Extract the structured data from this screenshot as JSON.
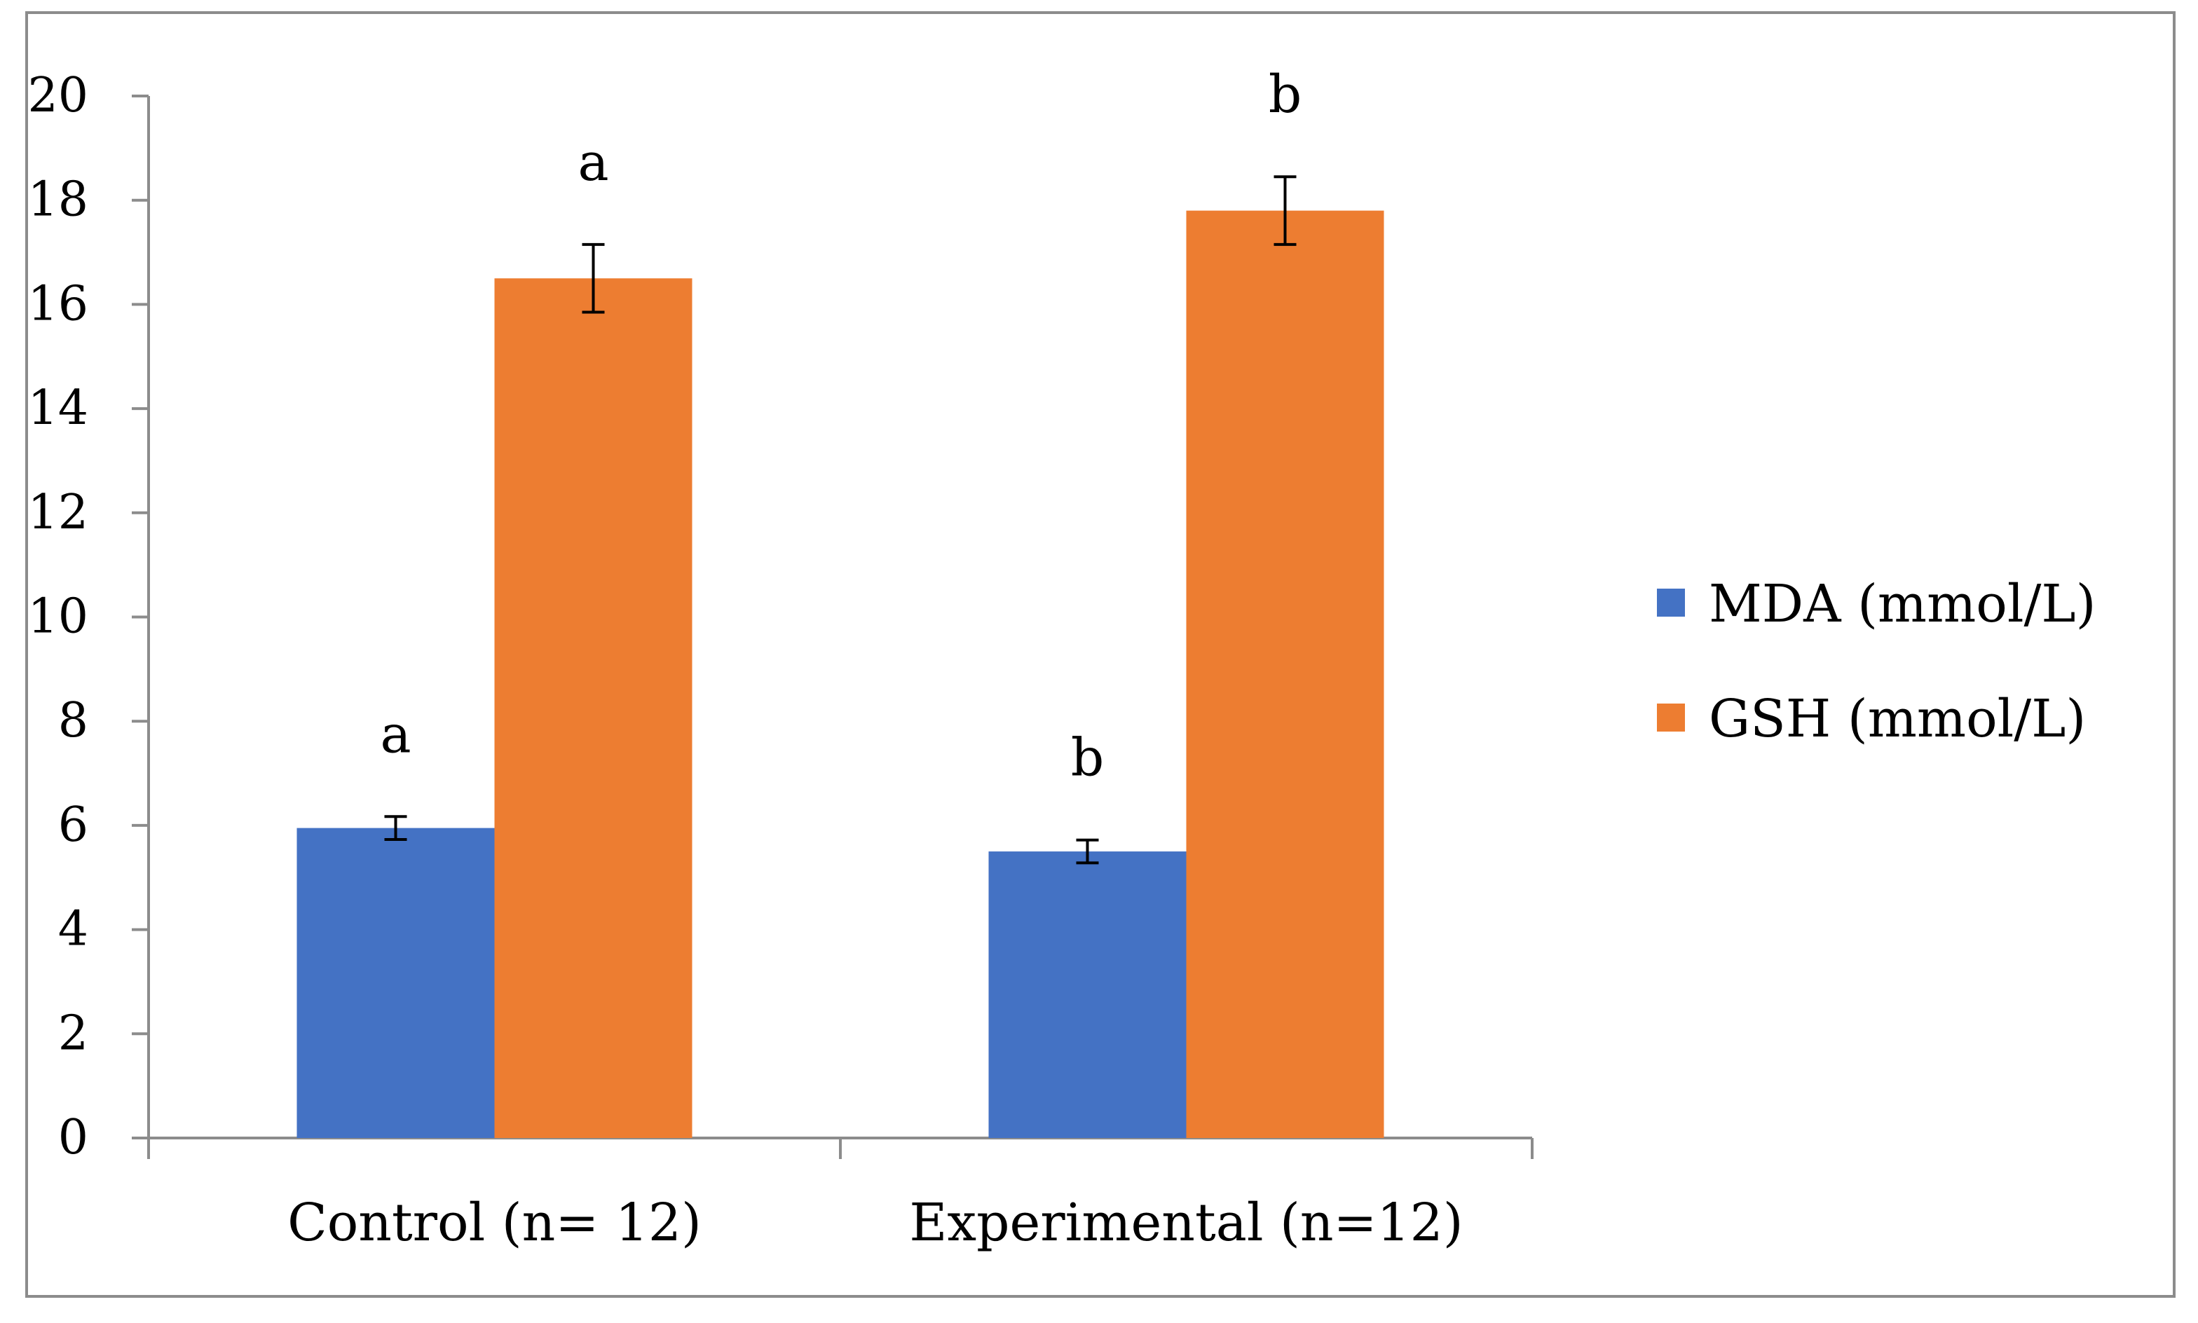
{
  "chart_data": {
    "type": "bar",
    "title": "",
    "xlabel": "",
    "ylabel": "",
    "ylim": [
      0,
      20
    ],
    "ytick_step": 2,
    "yticks": [
      "0",
      "2",
      "4",
      "6",
      "8",
      "10",
      "12",
      "14",
      "16",
      "18",
      "20"
    ],
    "grid": false,
    "legend_position": "right",
    "categories": [
      "Control (n= 12)",
      "Experimental (n=12)"
    ],
    "series": [
      {
        "name": "MDA (mmol/L)",
        "color": "#4472c4",
        "values": [
          5.95,
          5.5
        ],
        "errors": [
          0.22,
          0.22
        ],
        "annotations": [
          "a",
          "b"
        ]
      },
      {
        "name": "GSH (mmol/L)",
        "color": "#ed7d31",
        "values": [
          16.5,
          17.8
        ],
        "errors": [
          0.65,
          0.65
        ],
        "annotations": [
          "a",
          "b"
        ]
      }
    ]
  }
}
